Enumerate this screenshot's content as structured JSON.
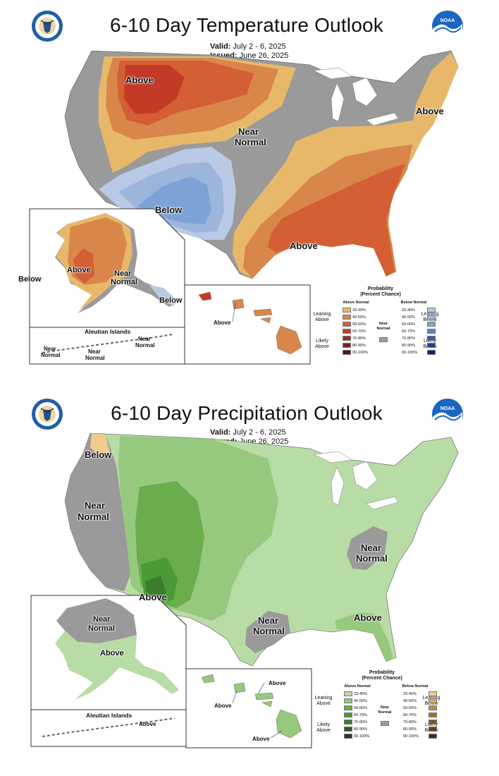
{
  "temperature": {
    "title": "6-10 Day Temperature Outlook",
    "valid_label": "Valid:",
    "valid_value": "July 2 - 6, 2025",
    "issued_label": "Issued:",
    "issued_value": "June 26, 2025",
    "labels": {
      "above_northwest": "Above",
      "near_normal_1": "Near",
      "near_normal_2": "Normal",
      "above_northeast": "Above",
      "below_southwest": "Below",
      "above_southeast": "Above",
      "ak_below_west": "Below",
      "ak_above": "Above",
      "ak_near_1": "Near",
      "ak_near_2": "Normal",
      "ak_below_se": "Below",
      "aleutian_title": "Aleutian Islands",
      "aleut_near_a1": "Near",
      "aleut_near_a2": "Normal",
      "aleut_near_b1": "Near",
      "aleut_near_b2": "Normal",
      "aleut_near_c1": "Near",
      "aleut_near_c2": "Normal",
      "hawaii_above": "Above"
    },
    "legend": {
      "title_1": "Probability",
      "title_2": "(Percent Chance)",
      "above_header": "Above Normal",
      "below_header": "Below Normal",
      "near_header_1": "Near",
      "near_header_2": "Normal",
      "leaning_above_1": "Leaning",
      "leaning_above_2": "Above",
      "likely_above_1": "Likely",
      "likely_above_2": "Above",
      "leaning_below_1": "Leaning",
      "leaning_below_2": "Below",
      "likely_below_1": "Likely",
      "likely_below_2": "Below",
      "ranges": [
        "33-40%",
        "40-50%",
        "50-60%",
        "60-70%",
        "70-80%",
        "80-90%",
        "90-100%"
      ],
      "above_colors": [
        "#e8b86a",
        "#d9864a",
        "#d45f34",
        "#c33b26",
        "#a02a22",
        "#7a2320",
        "#4d1814"
      ],
      "below_colors": [
        "#b9c9e6",
        "#9db5db",
        "#7da3d6",
        "#4e86cf",
        "#2d5fae",
        "#1e3f8a",
        "#16205a"
      ],
      "near_color": "#9a9a9a"
    }
  },
  "precipitation": {
    "title": "6-10 Day Precipitation Outlook",
    "valid_label": "Valid:",
    "valid_value": "July 2 - 6, 2025",
    "issued_label": "Issued:",
    "issued_value": "June 26, 2025",
    "labels": {
      "below_northwest": "Below",
      "near_west_1": "Near",
      "near_west_2": "Normal",
      "near_east_1": "Near",
      "near_east_2": "Normal",
      "above_southwest": "Above",
      "near_texas_1": "Near",
      "near_texas_2": "Normal",
      "above_florida": "Above",
      "ak_near_1": "Near",
      "ak_near_2": "Normal",
      "ak_above": "Above",
      "aleutian_title": "Aleutian Islands",
      "aleut_above": "Above",
      "hi_above_1": "Above",
      "hi_above_2": "Above",
      "hi_above_3": "Above"
    },
    "legend": {
      "title_1": "Probability",
      "title_2": "(Percent Chance)",
      "above_header": "Above Normal",
      "below_header": "Below Normal",
      "near_header_1": "Near",
      "near_header_2": "Normal",
      "leaning_above_1": "Leaning",
      "leaning_above_2": "Above",
      "likely_above_1": "Likely",
      "likely_above_2": "Above",
      "leaning_below_1": "Leaning",
      "leaning_below_2": "Below",
      "likely_below_1": "Likely",
      "likely_below_2": "Below",
      "ranges": [
        "33-40%",
        "40-50%",
        "50-60%",
        "60-70%",
        "70-80%",
        "80-90%",
        "90-100%"
      ],
      "above_colors": [
        "#b8dca6",
        "#96c97e",
        "#69ad4c",
        "#4a9a37",
        "#3b7d2c",
        "#2c5e22",
        "#1d3f17"
      ],
      "below_colors": [
        "#f0cc8e",
        "#d9a85a",
        "#c48a43",
        "#a86a32",
        "#8a5026",
        "#6a3a1c",
        "#4a2814"
      ],
      "near_color": "#9a9a9a"
    }
  }
}
